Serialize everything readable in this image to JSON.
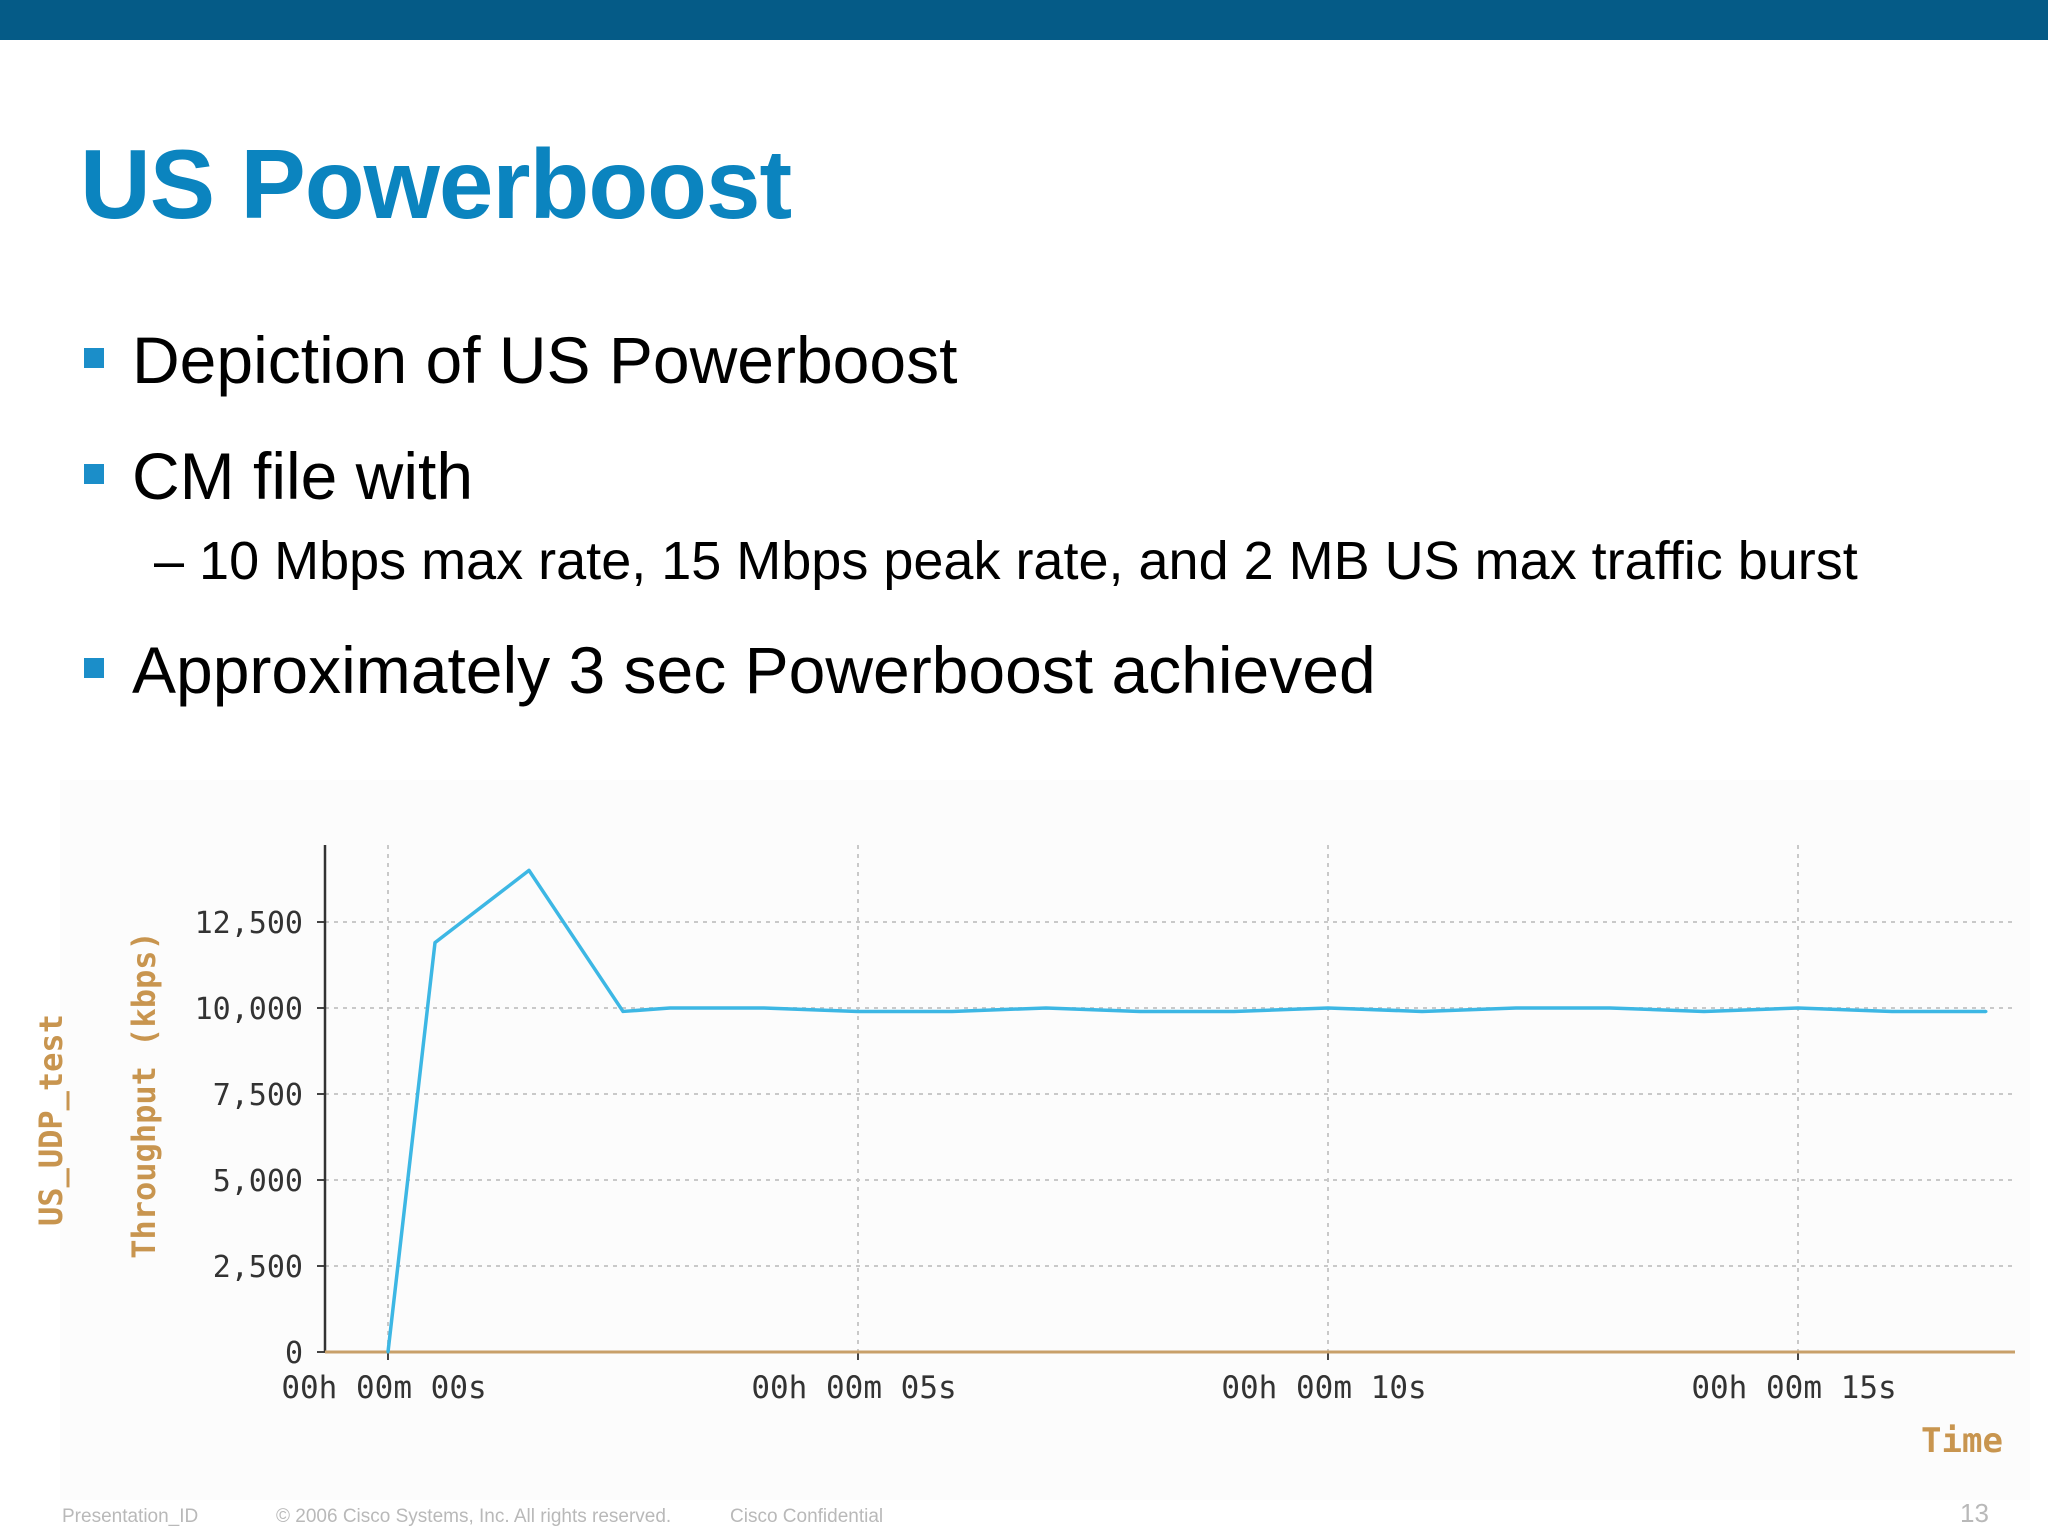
{
  "slide": {
    "title": "US Powerboost",
    "bullets": [
      {
        "text": "Depiction of US Powerboost"
      },
      {
        "text": "CM file with"
      },
      {
        "text": "Approximately 3 sec Powerboost achieved"
      }
    ],
    "sub_bullet": "– 10 Mbps max rate, 15 Mbps peak rate, and 2 MB US max traffic burst",
    "footer": {
      "presentation_id": "Presentation_ID",
      "copyright": "© 2006 Cisco Systems, Inc. All rights reserved.",
      "confidential": "Cisco Confidential",
      "page_number": "13"
    }
  },
  "colors": {
    "top_bar": "#055b87",
    "title": "#0b84bf",
    "bullet_square": "#1b8ec9",
    "series_line": "#3db7e4",
    "axis_label": "#c8954f"
  },
  "chart_data": {
    "type": "line",
    "title": "",
    "outer_ylabel": "US_UDP_test",
    "ylabel": "Throughput (kbps)",
    "xlabel": "Time",
    "ylim": [
      0,
      14500
    ],
    "xlim": [
      0,
      17
    ],
    "yticks": [
      {
        "value": 0,
        "label": "0"
      },
      {
        "value": 2500,
        "label": "2,500"
      },
      {
        "value": 5000,
        "label": "5,000"
      },
      {
        "value": 7500,
        "label": "7,500"
      },
      {
        "value": 10000,
        "label": "10,000"
      },
      {
        "value": 12500,
        "label": "12,500"
      }
    ],
    "xticks": [
      {
        "value": 0,
        "label": "00h 00m 00s"
      },
      {
        "value": 5,
        "label": "00h 00m 05s"
      },
      {
        "value": 10,
        "label": "00h 00m 10s"
      },
      {
        "value": 15,
        "label": "00h 00m 15s"
      }
    ],
    "grid": true,
    "series": [
      {
        "x": [
          0,
          0.5,
          1.5,
          2.5,
          3,
          4,
          5,
          6,
          7,
          8,
          9,
          10,
          11,
          12,
          13,
          14,
          15,
          16,
          17
        ],
        "y": [
          0,
          11900,
          14000,
          9900,
          10000,
          10000,
          9900,
          9900,
          10000,
          9900,
          9900,
          10000,
          9900,
          10000,
          10000,
          9900,
          10000,
          9900,
          9900
        ]
      }
    ]
  }
}
